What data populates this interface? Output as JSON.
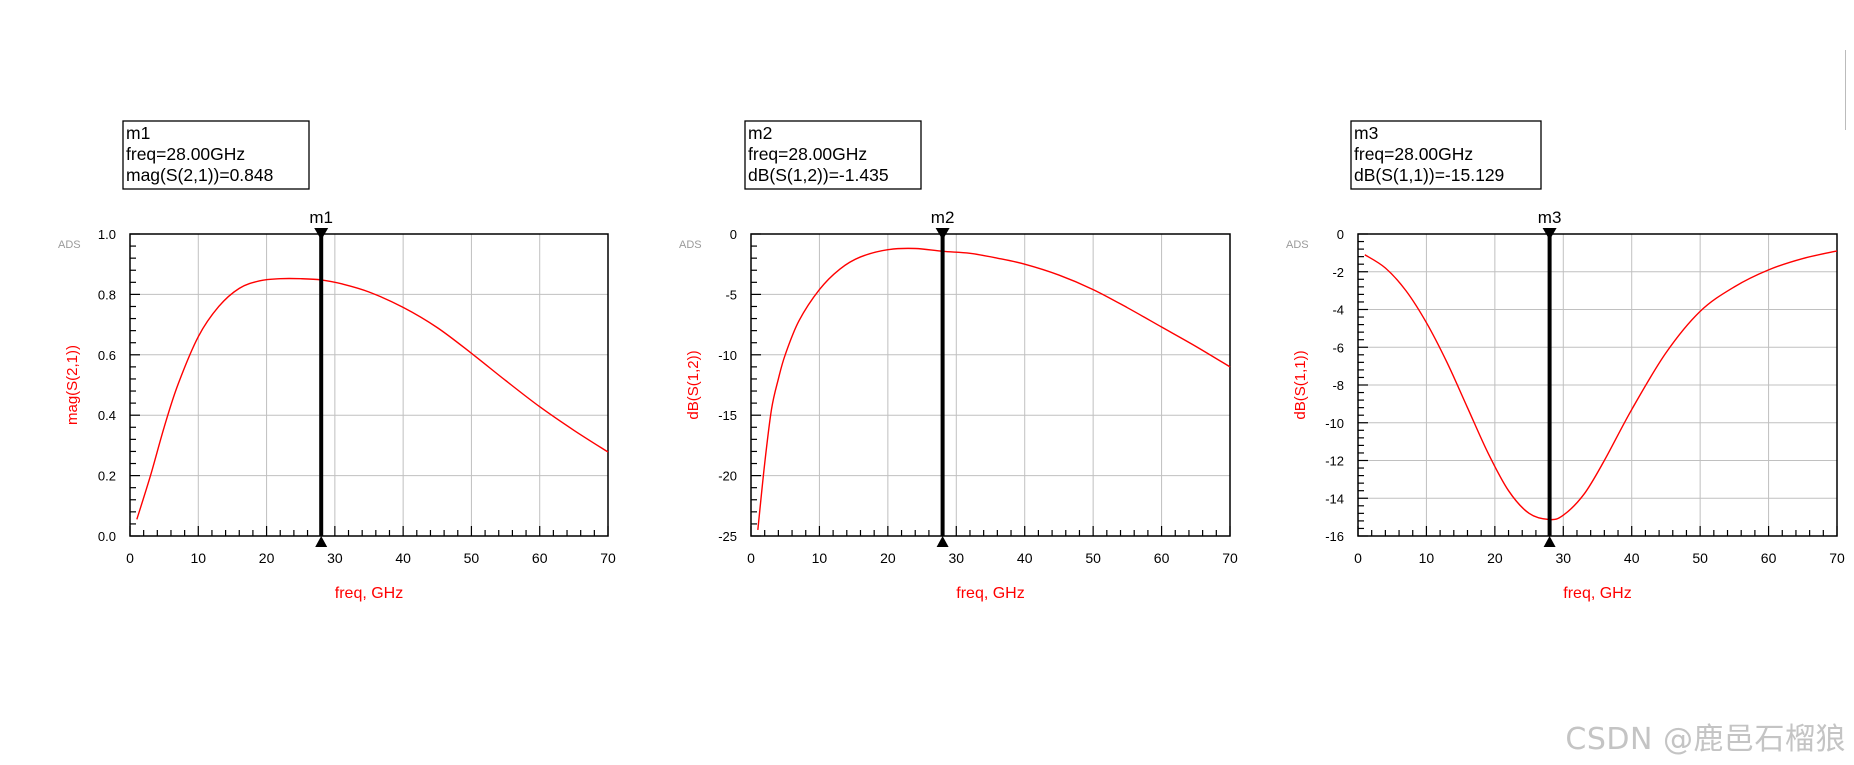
{
  "watermark": "CSDN @鹿邑石榴狼",
  "colors": {
    "trace": "#ff0000",
    "grid": "#c0c0c0",
    "axis": "#000000",
    "marker": "#000000",
    "ads_tag": "#9a9a9a"
  },
  "chart_data": [
    {
      "type": "line",
      "tag": "ADS",
      "xlabel": "freq, GHz",
      "ylabel": "mag(S(2,1))",
      "xlim": [
        0,
        70
      ],
      "ylim": [
        0.0,
        1.0
      ],
      "xticks": [
        0,
        10,
        20,
        30,
        40,
        50,
        60,
        70
      ],
      "yticks": [
        0.0,
        0.2,
        0.4,
        0.6,
        0.8,
        1.0
      ],
      "ytick_labels": [
        "0.0",
        "0.2",
        "0.4",
        "0.6",
        "0.8",
        "1.0"
      ],
      "grid": true,
      "series": [
        {
          "x": [
            1,
            3,
            5,
            7,
            10,
            13,
            16,
            19,
            22,
            25,
            28,
            31,
            35,
            40,
            45,
            50,
            55,
            60,
            65,
            70
          ],
          "values": [
            0.055,
            0.2,
            0.36,
            0.5,
            0.66,
            0.76,
            0.82,
            0.845,
            0.852,
            0.852,
            0.848,
            0.835,
            0.808,
            0.757,
            0.69,
            0.605,
            0.515,
            0.428,
            0.35,
            0.278
          ]
        }
      ],
      "marker": {
        "name": "m1",
        "x": 28,
        "lines": [
          "m1",
          "freq=28.00GHz",
          "mag(S(2,1))=0.848"
        ]
      }
    },
    {
      "type": "line",
      "tag": "ADS",
      "xlabel": "freq, GHz",
      "ylabel": "dB(S(1,2))",
      "xlim": [
        0,
        70
      ],
      "ylim": [
        -25,
        0
      ],
      "xticks": [
        0,
        10,
        20,
        30,
        40,
        50,
        60,
        70
      ],
      "yticks": [
        -25,
        -20,
        -15,
        -10,
        -5,
        0
      ],
      "ytick_labels": [
        "-25",
        "-20",
        "-15",
        "-10",
        "-5",
        "0"
      ],
      "grid": true,
      "series": [
        {
          "x": [
            1,
            2,
            3,
            4,
            5,
            7,
            10,
            13,
            16,
            20,
            24,
            28,
            32,
            36,
            40,
            45,
            50,
            55,
            60,
            65,
            70
          ],
          "values": [
            -24.5,
            -19.0,
            -14.5,
            -12.0,
            -10.0,
            -7.2,
            -4.6,
            -2.9,
            -1.9,
            -1.3,
            -1.2,
            -1.435,
            -1.6,
            -2.0,
            -2.5,
            -3.4,
            -4.6,
            -6.1,
            -7.7,
            -9.3,
            -11.0
          ]
        }
      ],
      "marker": {
        "name": "m2",
        "x": 28,
        "lines": [
          "m2",
          "freq=28.00GHz",
          "dB(S(1,2))=-1.435"
        ]
      }
    },
    {
      "type": "line",
      "tag": "ADS",
      "xlabel": "freq, GHz",
      "ylabel": "dB(S(1,1))",
      "xlim": [
        0,
        70
      ],
      "ylim": [
        -16,
        0
      ],
      "xticks": [
        0,
        10,
        20,
        30,
        40,
        50,
        60,
        70
      ],
      "yticks": [
        -16,
        -14,
        -12,
        -10,
        -8,
        -6,
        -4,
        -2,
        0
      ],
      "ytick_labels": [
        "-16",
        "-14",
        "-12",
        "-10",
        "-8",
        "-6",
        "-4",
        "-2",
        "0"
      ],
      "grid": true,
      "series": [
        {
          "x": [
            1,
            4,
            7,
            10,
            13,
            16,
            19,
            22,
            25,
            28,
            30,
            33,
            36,
            40,
            45,
            50,
            55,
            60,
            65,
            70
          ],
          "values": [
            -1.1,
            -1.8,
            -3.0,
            -4.7,
            -6.8,
            -9.2,
            -11.6,
            -13.6,
            -14.8,
            -15.129,
            -14.9,
            -13.8,
            -12.0,
            -9.3,
            -6.3,
            -4.1,
            -2.8,
            -1.9,
            -1.3,
            -0.9
          ]
        }
      ],
      "marker": {
        "name": "m3",
        "x": 28,
        "lines": [
          "m3",
          "freq=28.00GHz",
          "dB(S(1,1))=-15.129"
        ]
      }
    }
  ]
}
